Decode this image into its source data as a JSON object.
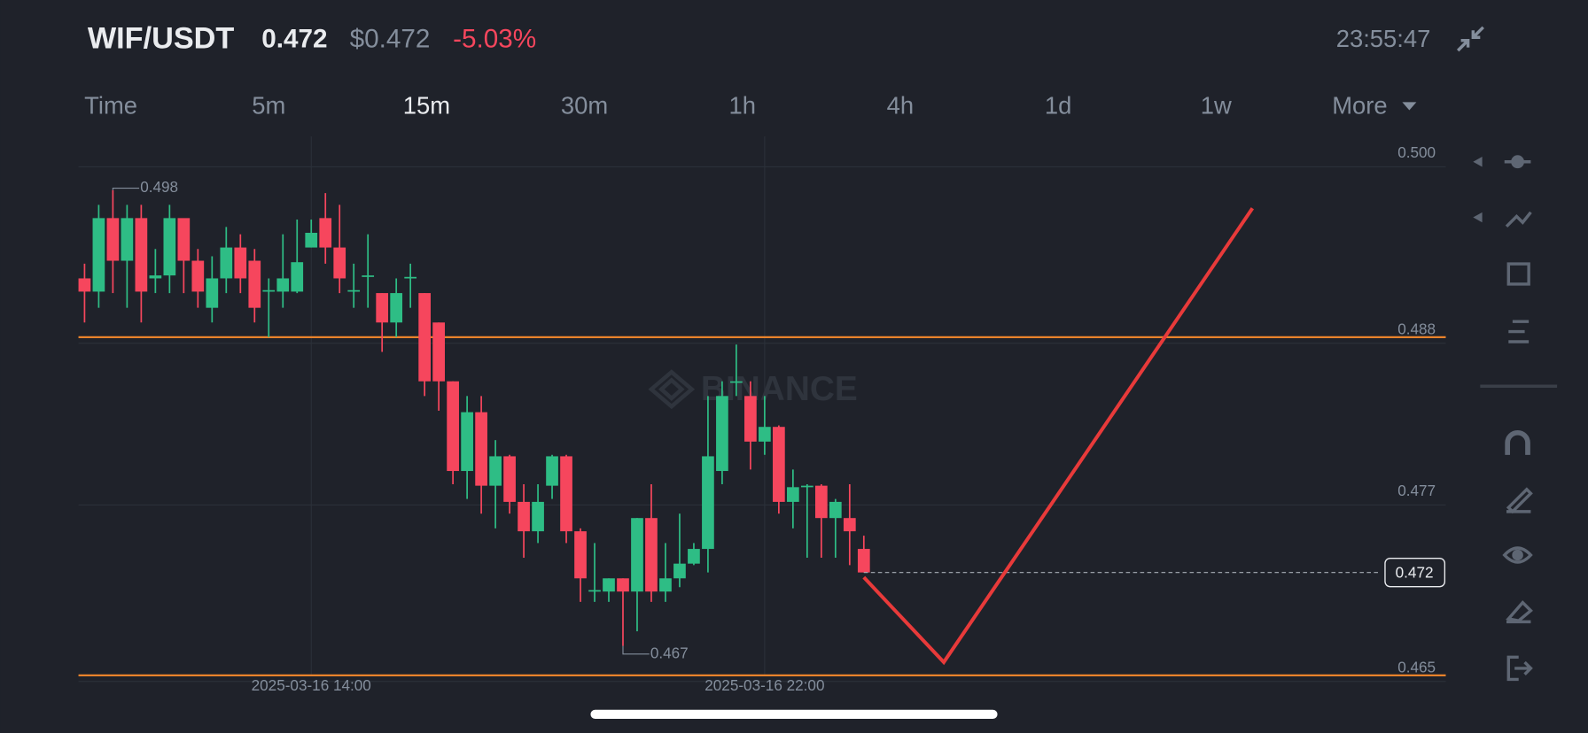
{
  "header": {
    "pair": "WIF/USDT",
    "price": "0.472",
    "usd_price": "$0.472",
    "change": "-5.03%",
    "clock": "23:55:47"
  },
  "tabs": [
    "Time",
    "5m",
    "15m",
    "30m",
    "1h",
    "4h",
    "1d",
    "1w",
    "More"
  ],
  "active_tab": "15m",
  "chart_data": {
    "type": "candlestick",
    "watermark": "BINANCE",
    "categories": [
      null,
      null,
      null,
      null,
      null,
      null,
      null,
      null,
      null,
      null,
      null,
      null,
      null,
      null,
      null,
      null,
      "2025-03-16 14:00",
      null,
      null,
      null,
      null,
      null,
      null,
      null,
      null,
      null,
      null,
      null,
      null,
      null,
      null,
      null,
      null,
      null,
      null,
      null,
      null,
      null,
      null,
      null,
      null,
      null,
      null,
      null,
      null,
      null,
      null,
      null,
      "2025-03-16 22:00",
      null,
      null,
      null,
      null,
      null,
      null,
      null
    ],
    "open": [
      0.492,
      0.4911,
      0.4961,
      0.4932,
      0.4961,
      0.492,
      0.4922,
      0.4961,
      0.4932,
      0.49,
      0.492,
      0.4941,
      0.4932,
      0.4911,
      0.4911,
      0.4911,
      0.4941,
      0.4961,
      0.4941,
      0.4911,
      0.4921,
      0.491,
      0.489,
      0.492,
      0.491,
      0.489,
      0.485,
      0.4789,
      0.4829,
      0.4779,
      0.4799,
      0.4768,
      0.4748,
      0.4779,
      0.4799,
      0.4748,
      0.4707,
      0.4707,
      0.4716,
      0.4707,
      0.4757,
      0.4707,
      0.4716,
      0.4726,
      0.4736,
      0.4789,
      0.4849,
      0.484,
      0.4809,
      0.4819,
      0.4768,
      0.4778,
      0.4779,
      0.4757,
      0.4757,
      0.4736
    ],
    "high": [
      0.493,
      0.497,
      0.498,
      0.497,
      0.497,
      0.494,
      0.497,
      0.496,
      0.494,
      0.4935,
      0.4955,
      0.495,
      0.494,
      0.492,
      0.495,
      0.496,
      0.496,
      0.4978,
      0.497,
      0.493,
      0.495,
      0.491,
      0.492,
      0.493,
      0.491,
      0.489,
      0.485,
      0.484,
      0.484,
      0.481,
      0.48,
      0.478,
      0.478,
      0.48,
      0.48,
      0.475,
      0.474,
      0.4716,
      0.4716,
      0.4757,
      0.478,
      0.474,
      0.476,
      0.474,
      0.484,
      0.485,
      0.4875,
      0.485,
      0.484,
      0.482,
      0.479,
      0.478,
      0.478,
      0.477,
      0.478,
      0.4745
    ],
    "low": [
      0.489,
      0.49,
      0.491,
      0.49,
      0.489,
      0.491,
      0.491,
      0.491,
      0.49,
      0.489,
      0.491,
      0.491,
      0.489,
      0.488,
      0.49,
      0.491,
      0.4941,
      0.493,
      0.491,
      0.49,
      0.49,
      0.487,
      0.488,
      0.49,
      0.484,
      0.483,
      0.478,
      0.477,
      0.476,
      0.475,
      0.476,
      0.473,
      0.474,
      0.477,
      0.474,
      0.47,
      0.47,
      0.47,
      0.467,
      0.468,
      0.47,
      0.47,
      0.471,
      0.4725,
      0.472,
      0.478,
      0.484,
      0.479,
      0.48,
      0.476,
      0.475,
      0.473,
      0.473,
      0.473,
      0.4725,
      0.472
    ],
    "close": [
      0.4911,
      0.4961,
      0.4932,
      0.4961,
      0.4911,
      0.4922,
      0.4961,
      0.4932,
      0.4911,
      0.492,
      0.4941,
      0.492,
      0.49,
      0.4912,
      0.492,
      0.4931,
      0.4951,
      0.4941,
      0.492,
      0.4912,
      0.4922,
      0.489,
      0.491,
      0.4921,
      0.485,
      0.485,
      0.4789,
      0.4829,
      0.4779,
      0.4799,
      0.4768,
      0.4748,
      0.4768,
      0.4799,
      0.4748,
      0.4716,
      0.4708,
      0.4716,
      0.4707,
      0.4757,
      0.4707,
      0.4716,
      0.4726,
      0.4736,
      0.4799,
      0.484,
      0.485,
      0.4809,
      0.4819,
      0.4768,
      0.4778,
      0.4779,
      0.4757,
      0.4768,
      0.4748,
      0.472
    ],
    "up_color": "#2ebd85",
    "down_color": "#f6465d",
    "high_label": "0.498",
    "low_label": "0.467",
    "current_price": 0.472,
    "horizontal_lines": [
      0.488,
      0.465
    ],
    "line_color": "#e8822b",
    "ylim": [
      0.465,
      0.5
    ],
    "yticks": [
      {
        "value": 0.5,
        "label": "0.500"
      },
      0.488,
      0.477,
      0.465
    ],
    "grid": true
  }
}
